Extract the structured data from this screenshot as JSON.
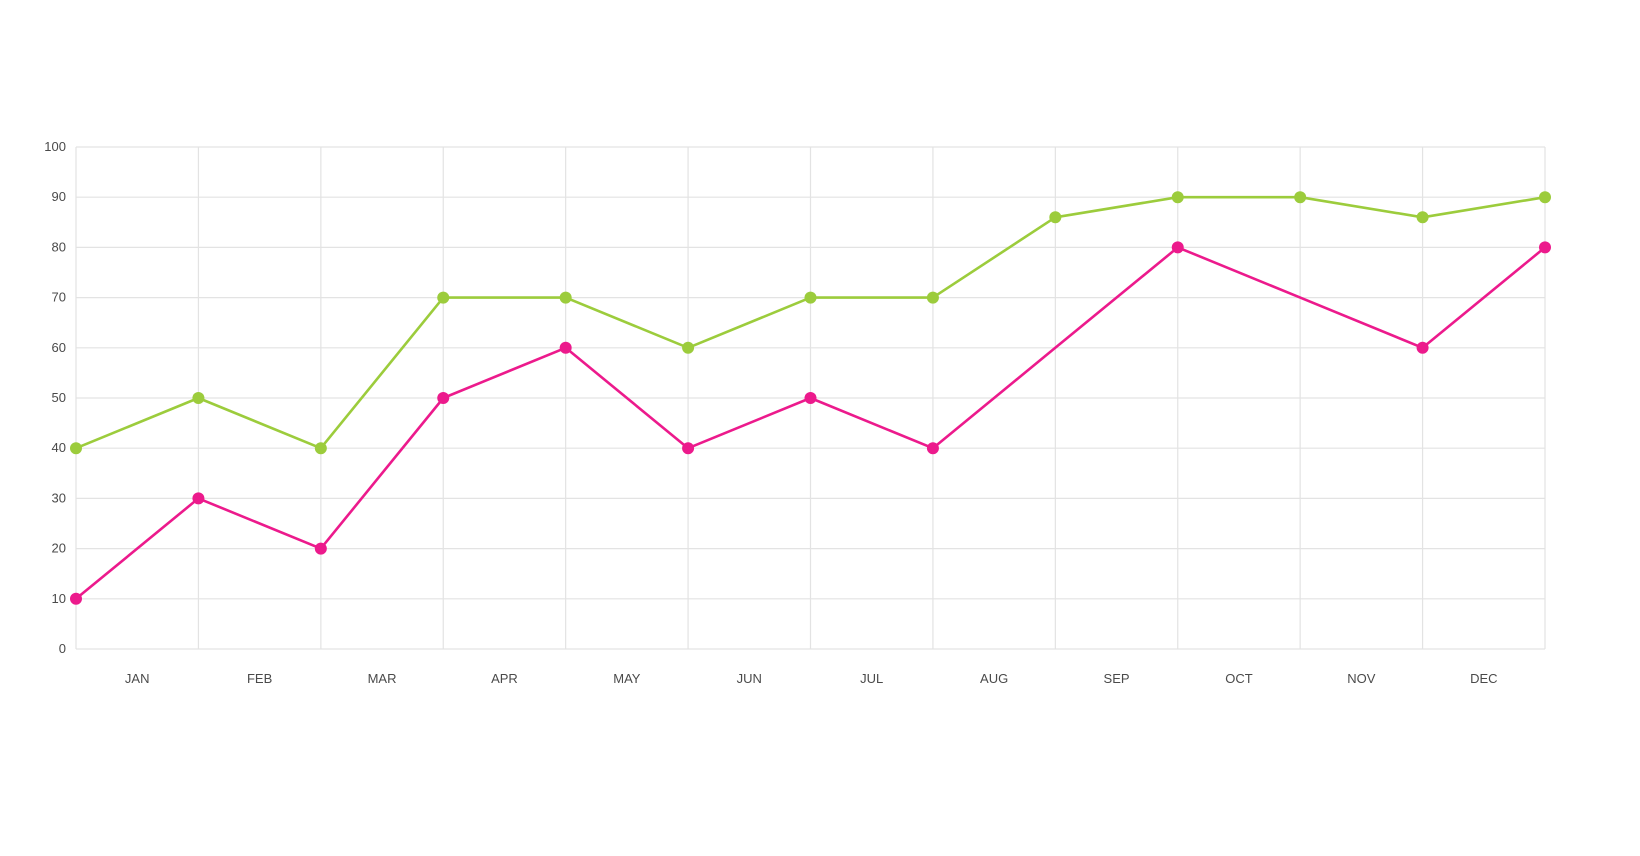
{
  "chart_data": {
    "type": "line",
    "categories": [
      "JAN",
      "FEB",
      "MAR",
      "APR",
      "MAY",
      "JUN",
      "JUL",
      "AUG",
      "SEP",
      "OCT",
      "NOV",
      "DEC"
    ],
    "x": [
      0,
      1,
      2,
      3,
      4,
      5,
      6,
      7,
      8,
      9,
      10,
      11,
      12
    ],
    "series": [
      {
        "color": "#9ccc3c",
        "values": [
          40,
          50,
          40,
          70,
          70,
          60,
          70,
          70,
          86,
          90,
          90,
          86,
          90
        ],
        "markers": [
          true,
          true,
          true,
          true,
          true,
          true,
          true,
          true,
          true,
          true,
          true,
          true,
          true
        ]
      },
      {
        "color": "#ec1a8c",
        "values": [
          10,
          30,
          20,
          50,
          60,
          40,
          50,
          40,
          60,
          80,
          70,
          60,
          80
        ],
        "markers": [
          true,
          true,
          true,
          true,
          true,
          true,
          true,
          true,
          false,
          true,
          false,
          true,
          true
        ]
      }
    ],
    "title": "",
    "xlabel": "",
    "ylabel": "",
    "ylim": [
      0,
      100
    ],
    "yticks": [
      "0",
      "10",
      "20",
      "30",
      "40",
      "50",
      "60",
      "70",
      "80",
      "90",
      "100"
    ],
    "grid": true,
    "legend": "none"
  }
}
